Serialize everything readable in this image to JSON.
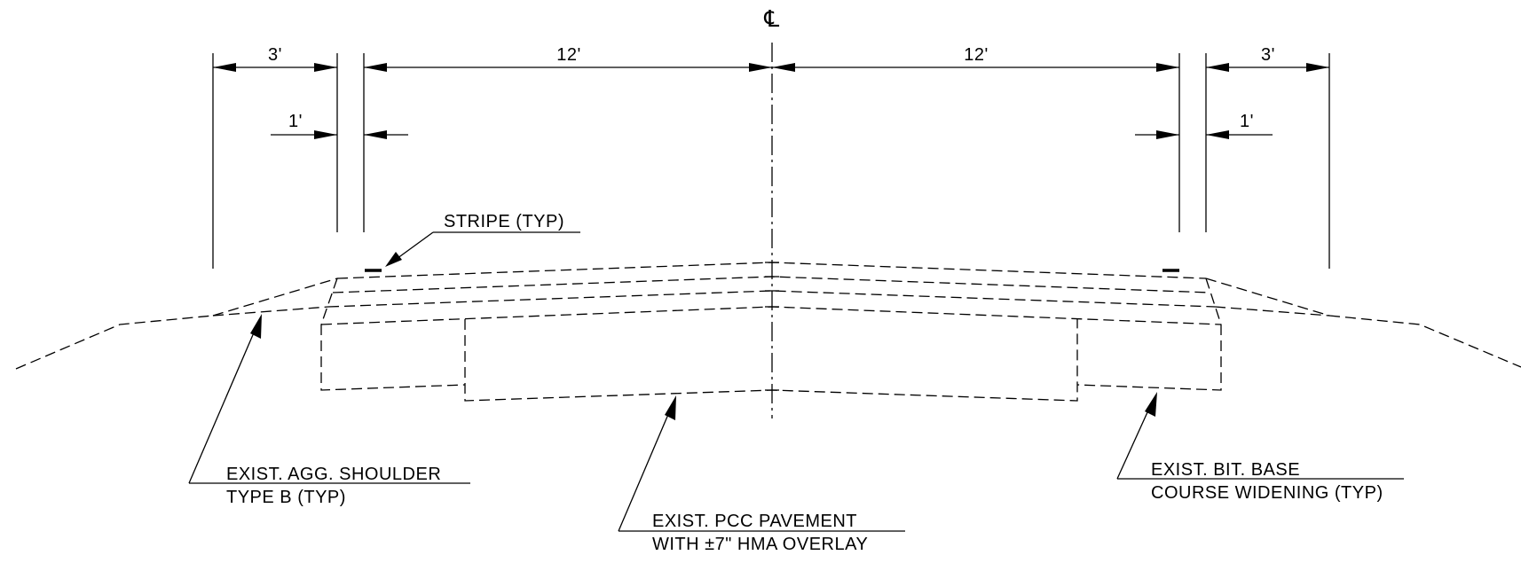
{
  "centerline": {
    "symbol": "℄"
  },
  "dimensions": {
    "left_shoulder": "3'",
    "left_lane": "12'",
    "right_lane": "12'",
    "right_shoulder": "3'",
    "left_offset": "1'",
    "right_offset": "1'"
  },
  "callouts": {
    "stripe": "STRIPE (TYP)",
    "shoulder_line1": "EXIST. AGG. SHOULDER",
    "shoulder_line2": "TYPE B (TYP)",
    "pavement_line1": "EXIST. PCC PAVEMENT",
    "pavement_line2": "WITH ±7\" HMA OVERLAY",
    "base_line1": "EXIST. BIT. BASE",
    "base_line2": "COURSE WIDENING (TYP)"
  }
}
